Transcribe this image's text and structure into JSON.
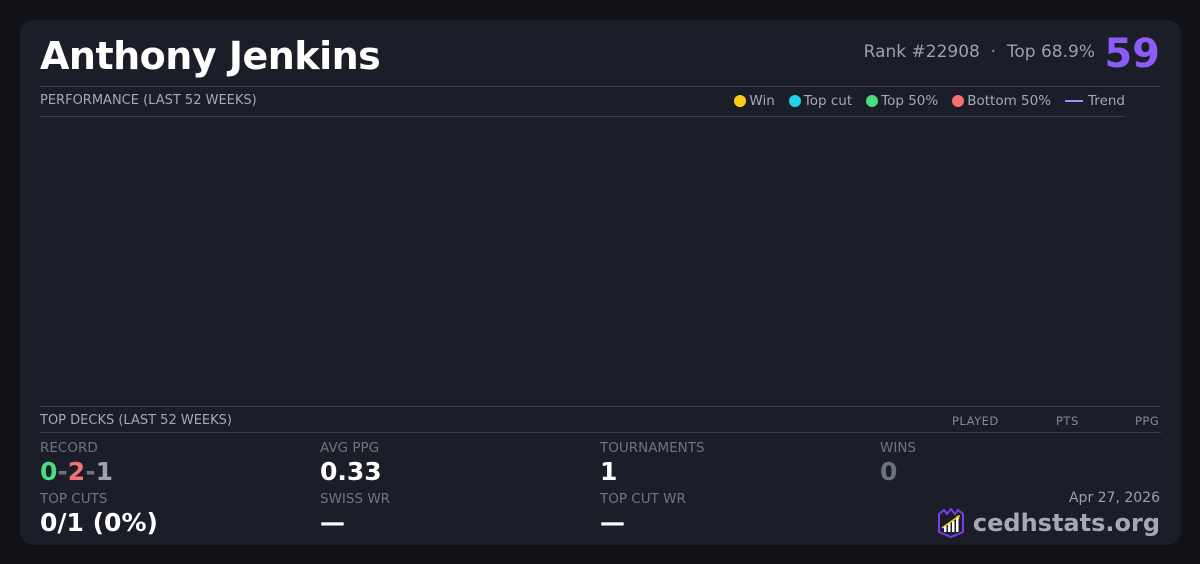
{
  "player": {
    "name": "Anthony Jenkins",
    "rank": "Rank #22908",
    "separator": "·",
    "top": "Top 68.9%",
    "score": "59"
  },
  "performance": {
    "title": "PERFORMANCE (LAST 52 WEEKS)",
    "legend": [
      {
        "label": "Win",
        "color": "#facc15",
        "icon": "dot"
      },
      {
        "label": "Top cut",
        "color": "#22d3ee",
        "icon": "dot"
      },
      {
        "label": "Top 50%",
        "color": "#4ade80",
        "icon": "dot"
      },
      {
        "label": "Bottom 50%",
        "color": "#f87171",
        "icon": "dot"
      },
      {
        "label": "Trend",
        "color": "#a78bfa",
        "icon": "line"
      }
    ]
  },
  "top_decks": {
    "title": "TOP DECKS (LAST 52 WEEKS)",
    "columns": [
      "PLAYED",
      "PTS",
      "PPG"
    ]
  },
  "stats": {
    "record": {
      "label": "RECORD",
      "wins": "0",
      "losses": "2",
      "draws": "1",
      "sep": "-"
    },
    "avg_ppg": {
      "label": "AVG PPG",
      "value": "0.33"
    },
    "tournaments": {
      "label": "TOURNAMENTS",
      "value": "1"
    },
    "wins": {
      "label": "WINS",
      "value": "0"
    },
    "top_cuts": {
      "label": "TOP CUTS",
      "value": "0/1 (0%)"
    },
    "swiss_wr": {
      "label": "SWISS WR",
      "value": "—"
    },
    "top_cut_wr": {
      "label": "TOP CUT WR",
      "value": "—"
    }
  },
  "footer": {
    "date": "Apr 27, 2026",
    "brand": "cedhstats.org"
  },
  "colors": {
    "accent": "#8b5cf6",
    "win": "#4ade80",
    "loss": "#f87171",
    "draw": "#9ca3af"
  }
}
